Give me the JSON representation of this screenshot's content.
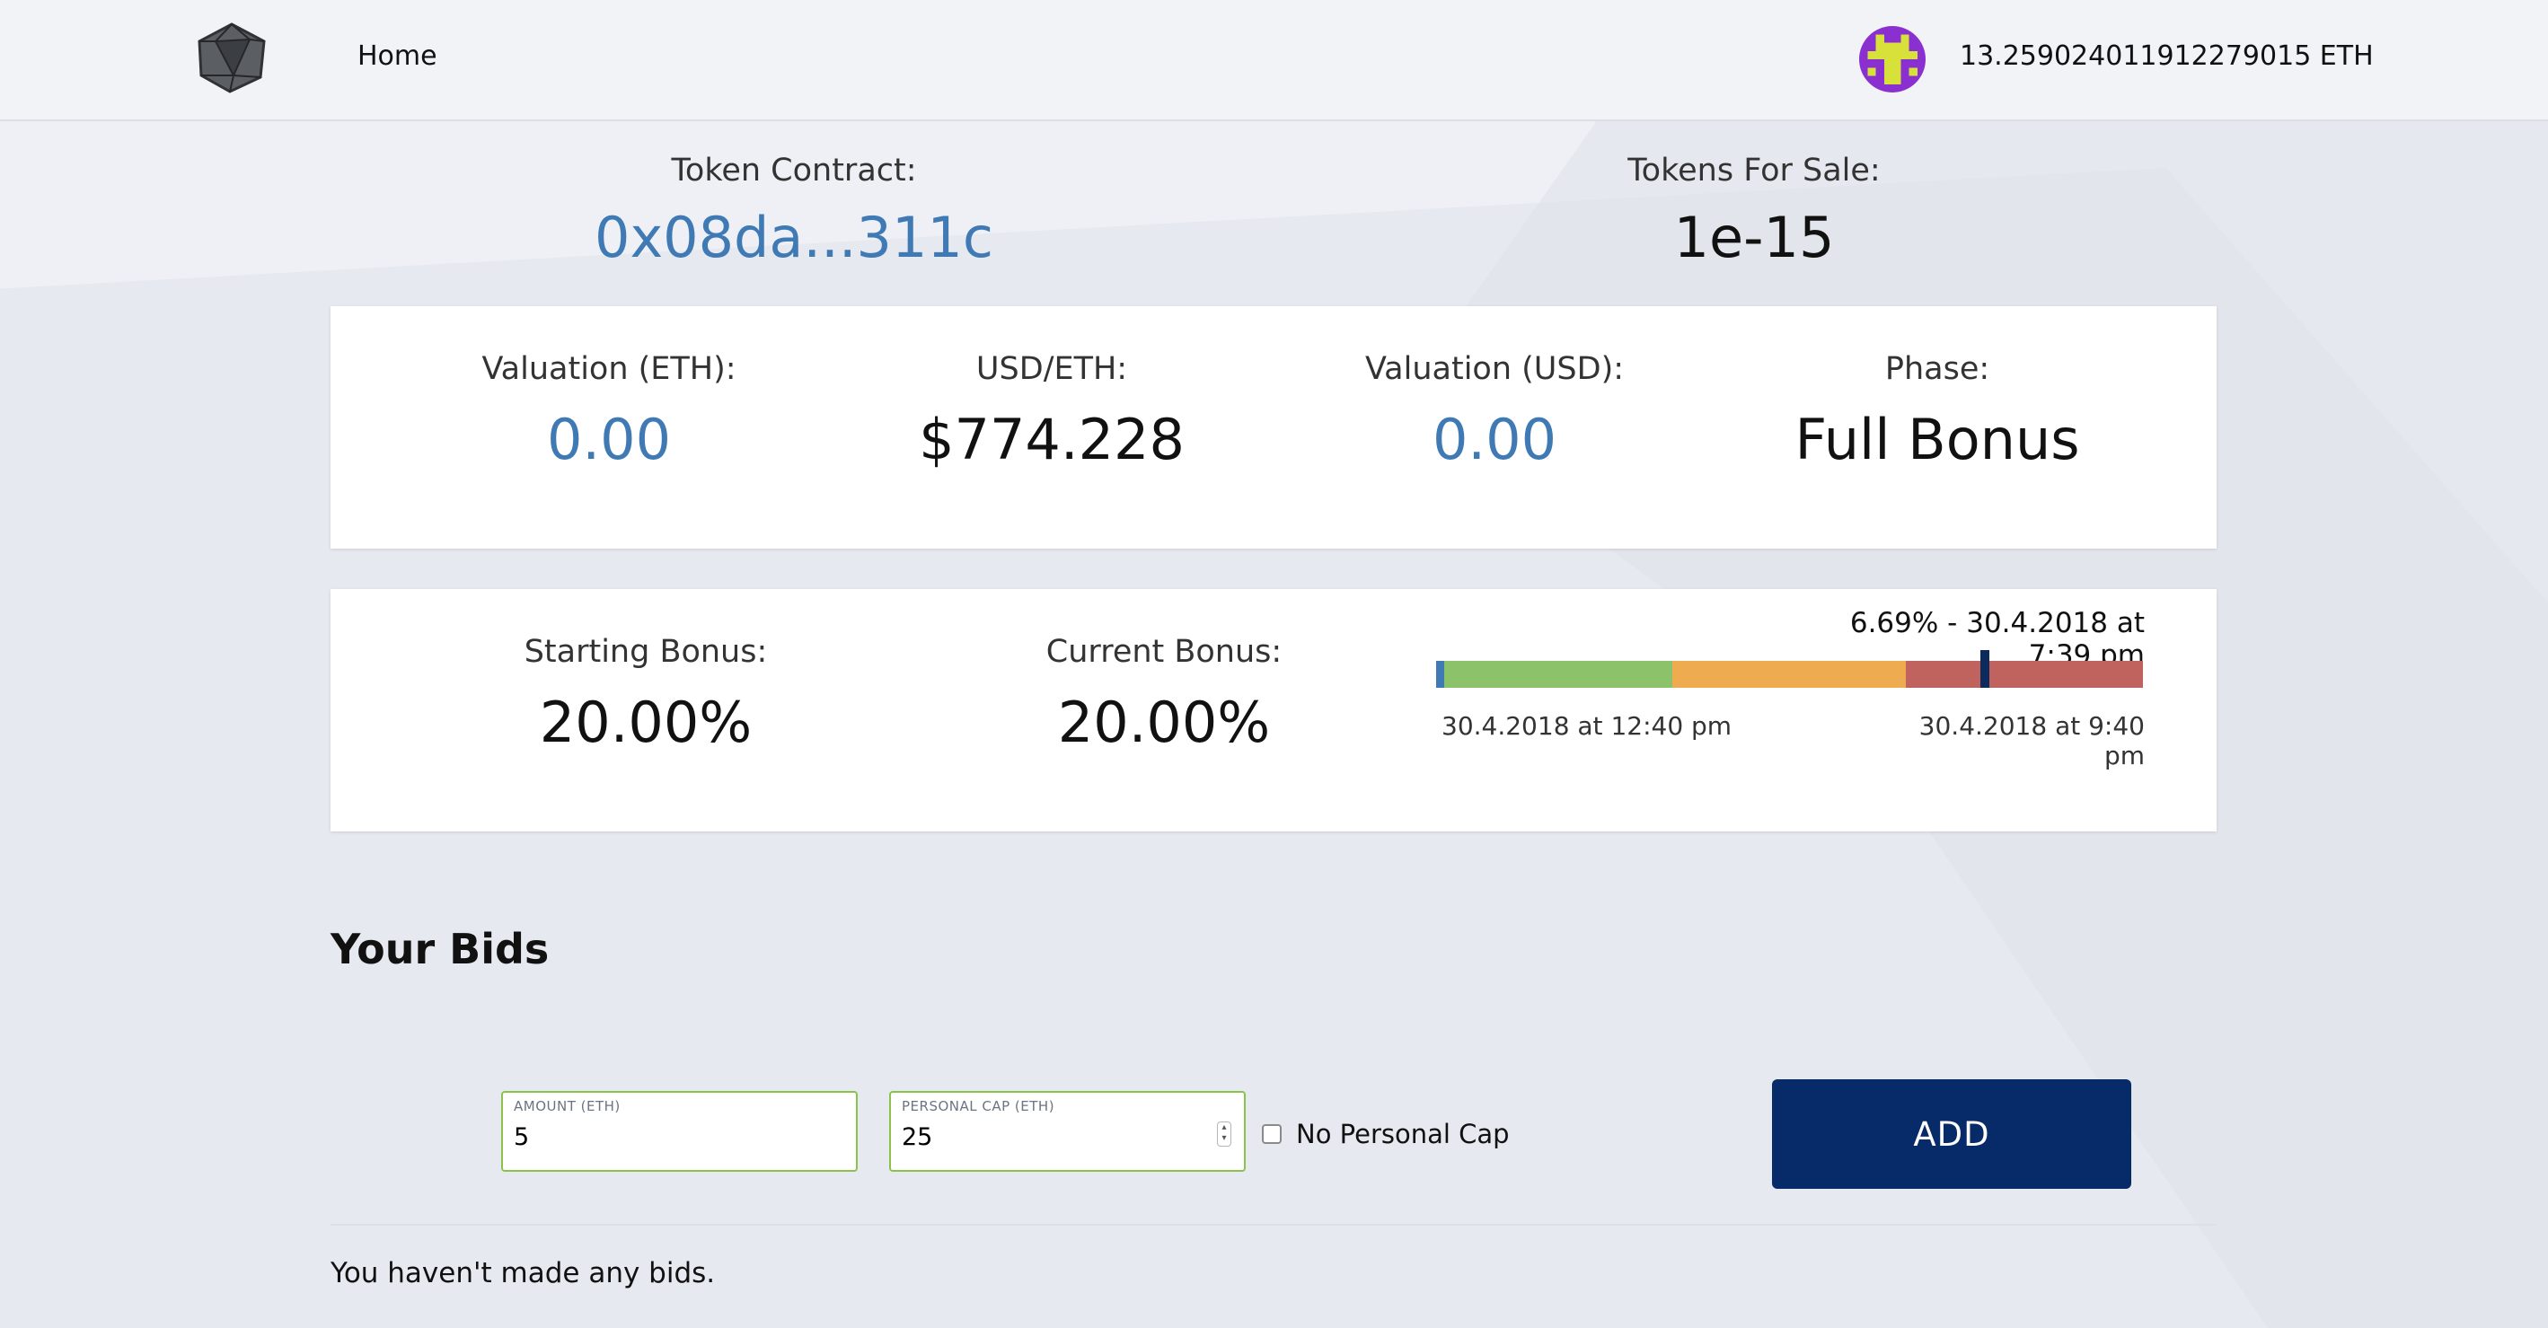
{
  "header": {
    "home_label": "Home",
    "balance": "13.259024011912279015 ETH"
  },
  "summary": {
    "token_contract_label": "Token Contract:",
    "token_contract_value": "0x08da...311c",
    "tokens_for_sale_label": "Tokens For Sale:",
    "tokens_for_sale_value": "1e-15"
  },
  "valuation": {
    "valuation_eth_label": "Valuation (ETH):",
    "valuation_eth_value": "0.00",
    "usd_eth_label": "USD/ETH:",
    "usd_eth_value": "$774.228",
    "valuation_usd_label": "Valuation (USD):",
    "valuation_usd_value": "0.00",
    "phase_label": "Phase:",
    "phase_value": "Full Bonus"
  },
  "bonus": {
    "starting_label": "Starting Bonus:",
    "starting_value": "20.00%",
    "current_label": "Current Bonus:",
    "current_value": "20.00%",
    "timeline_caption": "6.69% - 30.4.2018 at 7:39 pm",
    "timeline_start": "30.4.2018 at 12:40 pm",
    "timeline_end": "30.4.2018 at 9:40 pm",
    "timeline_progress": 0.77,
    "segment_colors": [
      "#3f7ab5",
      "#8cc26a",
      "#efab4f",
      "#c0635f"
    ],
    "marker_color": "#0d2a5c"
  },
  "bids": {
    "title": "Your Bids",
    "amount_label": "AMOUNT (ETH)",
    "amount_value": "5",
    "cap_label": "PERSONAL CAP (ETH)",
    "cap_value": "25",
    "no_cap_label": "No Personal Cap",
    "no_cap_checked": false,
    "add_label": "ADD",
    "empty_message": "You haven't made any bids."
  },
  "icons": {
    "logo": "icosahedron-logo-icon",
    "avatar": "identicon-avatar",
    "stepper": "stepper-icon"
  }
}
